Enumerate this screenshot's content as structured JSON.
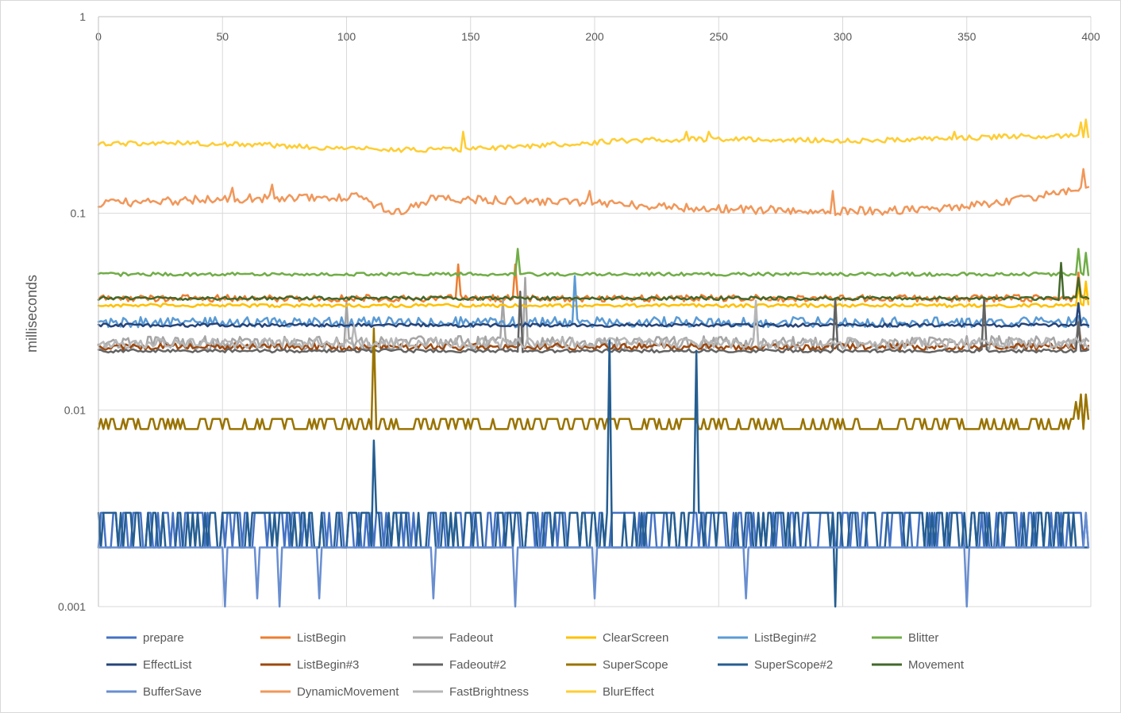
{
  "chart_data": {
    "type": "line",
    "title": "",
    "xlabel": "",
    "ylabel": "milliseconds",
    "yscale": "log",
    "xlim": [
      0,
      400
    ],
    "ylim": [
      0.001,
      1
    ],
    "x_ticks": [
      0,
      50,
      100,
      150,
      200,
      250,
      300,
      350,
      400
    ],
    "y_ticks": [
      {
        "value": 1,
        "label": "1"
      },
      {
        "value": 0.1,
        "label": "0.1"
      },
      {
        "value": 0.01,
        "label": "0.01"
      },
      {
        "value": 0.001,
        "label": "0.001"
      }
    ],
    "grid": true,
    "legend_position": "bottom",
    "n_points": 400,
    "series": [
      {
        "name": "prepare",
        "color": "#4472c4",
        "base": 0.002,
        "pattern": "alt",
        "alt": 0.003,
        "period": 5,
        "spikes": [
          [
            394,
            0.003
          ],
          [
            395,
            0.003
          ]
        ]
      },
      {
        "name": "ListBegin",
        "color": "#ed7d31",
        "base": 0.037,
        "jitter": 0.04,
        "spikes": [
          [
            145,
            0.055
          ],
          [
            168,
            0.055
          ],
          [
            395,
            0.05
          ]
        ]
      },
      {
        "name": "Fadeout",
        "color": "#a5a5a5",
        "base": 0.022,
        "jitter": 0.08,
        "spikes": [
          [
            100,
            0.035
          ],
          [
            163,
            0.036
          ],
          [
            172,
            0.047
          ],
          [
            265,
            0.034
          ],
          [
            395,
            0.03
          ]
        ]
      },
      {
        "name": "ClearScreen",
        "color": "#ffc000",
        "base": 0.034,
        "jitter": 0.02,
        "spikes": [
          [
            395,
            0.043
          ],
          [
            398,
            0.045
          ]
        ]
      },
      {
        "name": "ListBegin#2",
        "color": "#5b9bd5",
        "base": 0.028,
        "jitter": 0.06,
        "spikes": [
          [
            192,
            0.048
          ],
          [
            395,
            0.03
          ]
        ]
      },
      {
        "name": "Blitter",
        "color": "#70ad47",
        "base": 0.049,
        "jitter": 0.02,
        "spikes": [
          [
            169,
            0.066
          ],
          [
            395,
            0.066
          ],
          [
            398,
            0.063
          ]
        ]
      },
      {
        "name": "EffectList",
        "color": "#264478",
        "base": 0.027,
        "jitter": 0.02,
        "spikes": [
          [
            395,
            0.035
          ]
        ]
      },
      {
        "name": "ListBegin#3",
        "color": "#9e480e",
        "base": 0.021,
        "jitter": 0.04,
        "spikes": [
          [
            395,
            0.027
          ]
        ]
      },
      {
        "name": "Fadeout#2",
        "color": "#636363",
        "base": 0.02,
        "jitter": 0.02,
        "spikes": [
          [
            170,
            0.04
          ],
          [
            297,
            0.037
          ],
          [
            357,
            0.037
          ],
          [
            395,
            0.028
          ]
        ]
      },
      {
        "name": "SuperScope",
        "color": "#997300",
        "base": 0.009,
        "pattern": "alt",
        "alt": 0.008,
        "period": 3,
        "spikes": [
          [
            111,
            0.026
          ],
          [
            394,
            0.011
          ],
          [
            396,
            0.012
          ],
          [
            398,
            0.012
          ]
        ]
      },
      {
        "name": "SuperScope#2",
        "color": "#255e91",
        "base": 0.002,
        "pattern": "alt",
        "alt": 0.003,
        "period": 4,
        "spikes": [
          [
            111,
            0.007
          ],
          [
            206,
            0.023
          ],
          [
            241,
            0.02
          ],
          [
            297,
            0.001
          ]
        ]
      },
      {
        "name": "Movement",
        "color": "#43682b",
        "base": 0.037,
        "jitter": 0.02,
        "spikes": [
          [
            388,
            0.056
          ],
          [
            395,
            0.047
          ]
        ]
      },
      {
        "name": "BufferSave",
        "color": "#698ed0",
        "base": 0.002,
        "pattern": "dips",
        "alt": 0.001,
        "spikes": [
          [
            51,
            0.001
          ],
          [
            64,
            0.0011
          ],
          [
            73,
            0.001
          ],
          [
            89,
            0.0011
          ],
          [
            135,
            0.0011
          ],
          [
            168,
            0.001
          ],
          [
            200,
            0.0011
          ],
          [
            261,
            0.0011
          ],
          [
            350,
            0.001
          ],
          [
            398,
            0.003
          ]
        ]
      },
      {
        "name": "DynamicMovement",
        "color": "#f1975a",
        "base": 0.112,
        "jitter": 0.05,
        "trend": "dynamic",
        "spikes": [
          [
            54,
            0.135
          ],
          [
            70,
            0.14
          ],
          [
            198,
            0.13
          ],
          [
            296,
            0.13
          ],
          [
            397,
            0.168
          ]
        ]
      },
      {
        "name": "FastBrightness",
        "color": "#b7b7b7",
        "base": 0.022,
        "jitter": 0.06,
        "spikes": [
          [
            103,
            0.027
          ],
          [
            265,
            0.036
          ]
        ]
      },
      {
        "name": "BlurEffect",
        "color": "#ffcd33",
        "base": 0.23,
        "jitter": 0.03,
        "trend": "blur",
        "spikes": [
          [
            147,
            0.26
          ],
          [
            237,
            0.26
          ],
          [
            246,
            0.26
          ],
          [
            345,
            0.26
          ],
          [
            396,
            0.29
          ],
          [
            398,
            0.3
          ]
        ]
      }
    ]
  }
}
